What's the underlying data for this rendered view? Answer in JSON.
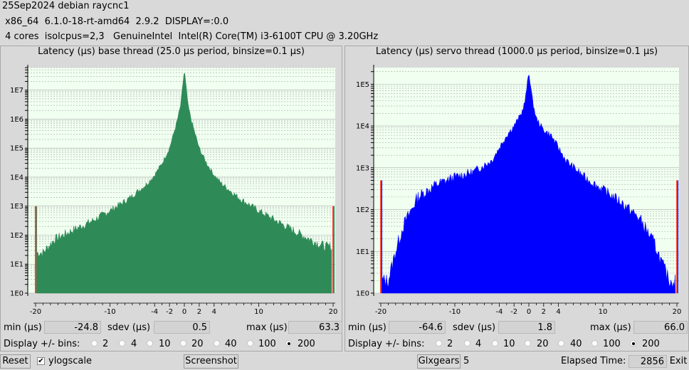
{
  "header": {
    "line1": "25Sep2024 debian raycnc1",
    "line2": " x86_64  6.1.0-18-rt-amd64  2.9.2  DISPLAY=:0.0",
    "line3": " 4 cores  isolcpus=2,3   GenuineIntel  Intel(R) Core(TM) i3-6100T CPU @ 3.20GHz"
  },
  "labels": {
    "min": "min (µs)",
    "sdev": "sdev (µs)",
    "max": "max (µs)",
    "display_bins": "Display +/- bins:",
    "bin_options": [
      "2",
      "4",
      "10",
      "20",
      "40",
      "100",
      "200"
    ],
    "selected_bins": "200"
  },
  "base_panel": {
    "title": "Latency (µs) base thread (25.0 µs period, binsize=0.1 µs)",
    "min": "-24.8",
    "sdev": "0.5",
    "max": "63.3"
  },
  "servo_panel": {
    "title": "Latency (µs) servo thread (1000.0 µs period, binsize=0.1 µs)",
    "min": "-64.6",
    "sdev": "1.8",
    "max": "66.0"
  },
  "footer": {
    "reset": "Reset",
    "ylogscale": "ylogscale",
    "ylogscale_checked": true,
    "screenshot": "Screenshot",
    "glxgears": "Glxgears",
    "glxgears_count": "5",
    "elapsed_label": "Elapsed Time:",
    "elapsed_value": "2856",
    "exit": "Exit"
  },
  "colors": {
    "base_fill": "#2e8b57",
    "servo_fill": "#0000ff",
    "plot_bg": "#f0fff0",
    "grid": "#a9a9a9",
    "edge_marker": "#ff0000"
  },
  "chart_data": [
    {
      "type": "bar",
      "title": "Latency (µs) base thread (25.0 µs period, binsize=0.1 µs)",
      "xlim": [
        -20,
        20
      ],
      "xticks": [
        -20,
        -10,
        -4,
        -2,
        0,
        2,
        4,
        10,
        20
      ],
      "yscale": "log",
      "ylim": [
        1,
        60000000
      ],
      "yticks": [
        "1E0",
        "1E1",
        "1E2",
        "1E3",
        "1E4",
        "1E5",
        "1E6",
        "1E7"
      ],
      "x": [
        -20,
        -19,
        -17.5,
        -15,
        -12.5,
        -10,
        -7.5,
        -5,
        -4,
        -3,
        -2,
        -1,
        -0.5,
        0,
        0.5,
        1,
        2,
        3,
        4,
        5,
        7.5,
        10,
        12.5,
        15,
        17.5,
        19,
        20
      ],
      "values": [
        1000,
        25,
        70,
        150,
        300,
        700,
        1800,
        6000,
        12000,
        30000,
        100000,
        800000,
        3000000,
        50000000,
        3000000,
        800000,
        100000,
        30000,
        12000,
        6000,
        1800,
        700,
        300,
        130,
        60,
        40,
        1000
      ]
    },
    {
      "type": "bar",
      "title": "Latency (µs) servo thread (1000.0 µs period, binsize=0.1 µs)",
      "xlim": [
        -20,
        20
      ],
      "xticks": [
        -20,
        -10,
        -4,
        -2,
        0,
        2,
        4,
        10,
        20
      ],
      "yscale": "log",
      "ylim": [
        1,
        250000
      ],
      "yticks": [
        "1E0",
        "1E1",
        "1E2",
        "1E3",
        "1E4",
        "1E5"
      ],
      "x": [
        -20,
        -19,
        -18,
        -17,
        -15,
        -12.5,
        -10,
        -7.5,
        -5,
        -4,
        -3,
        -2,
        -1,
        -0.5,
        0,
        0.5,
        1,
        2,
        3,
        4,
        5,
        7.5,
        10,
        12.5,
        15,
        17,
        18,
        19,
        20
      ],
      "values": [
        500,
        2,
        10,
        40,
        200,
        400,
        600,
        800,
        1500,
        3000,
        6000,
        10000,
        20000,
        40000,
        200000,
        40000,
        15000,
        8000,
        6000,
        3000,
        1500,
        600,
        300,
        150,
        60,
        15,
        5,
        2,
        500
      ]
    }
  ]
}
